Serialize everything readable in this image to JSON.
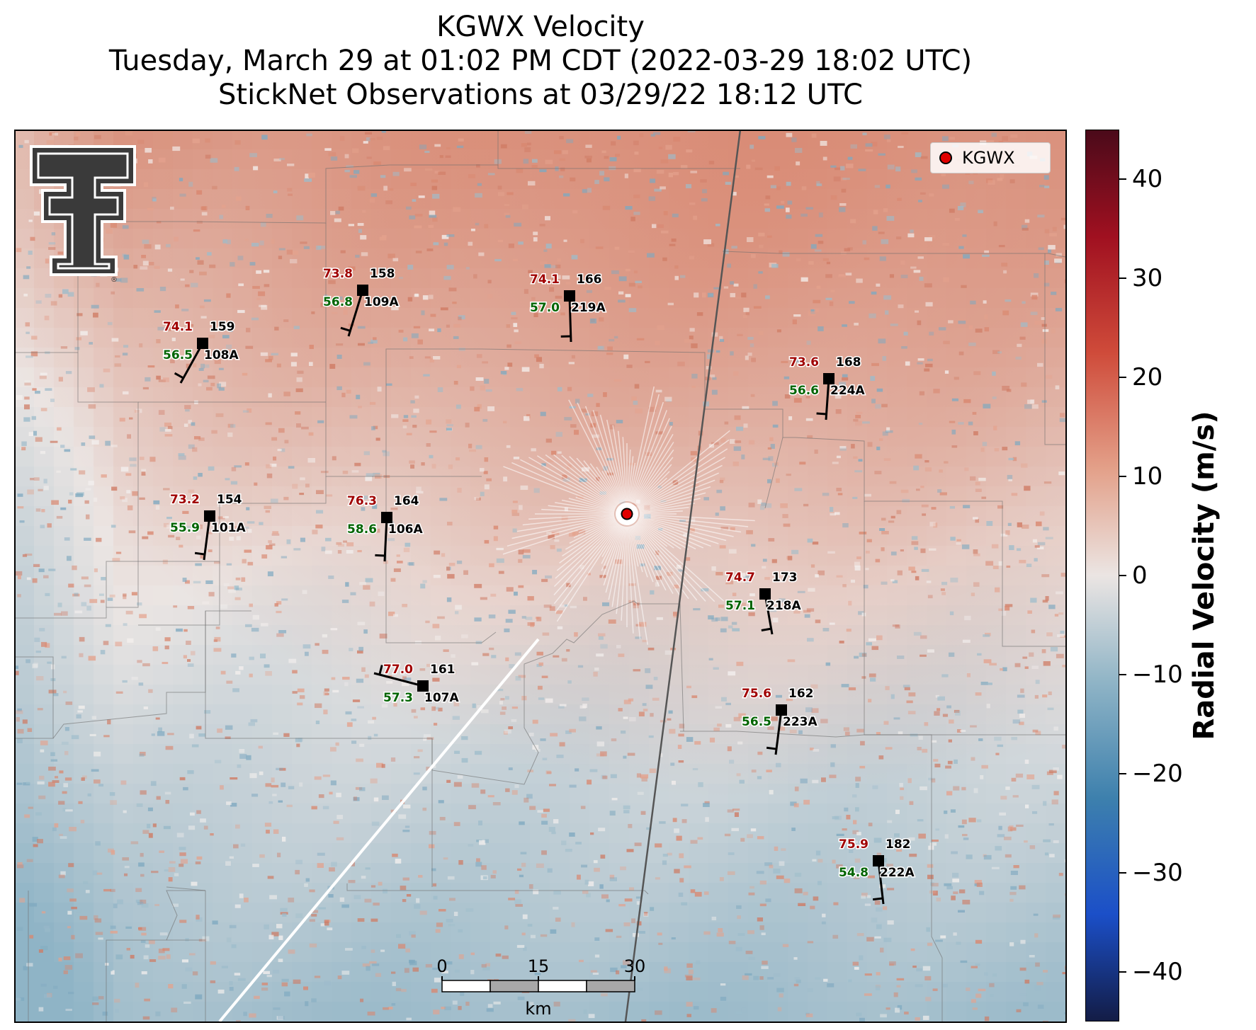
{
  "title": {
    "line1": "KGWX Velocity",
    "line2": "Tuesday, March 29 at 01:02 PM CDT (2022-03-29 18:02 UTC)",
    "line3": "StickNet Observations at 03/29/22 18:12 UTC"
  },
  "legend": {
    "label": "KGWX",
    "marker_color": "#e00000"
  },
  "radar": {
    "name": "KGWX"
  },
  "colorbar": {
    "label": "Radial Velocity (m/s)",
    "min": -45,
    "max": 45,
    "ticks": [
      40,
      30,
      20,
      10,
      0,
      -10,
      -20,
      -30,
      -40
    ],
    "tick_labels": [
      "40",
      "30",
      "20",
      "10",
      "0",
      "−10",
      "−20",
      "−30",
      "−40"
    ],
    "colors": [
      "#4a0a1a",
      "#a01020",
      "#cf4b3a",
      "#e3a089",
      "#ebe5e3",
      "#8fb4c6",
      "#3d80ad",
      "#1b4fc8",
      "#131c45"
    ]
  },
  "scalebar": {
    "labels": [
      "0",
      "15",
      "30"
    ],
    "unit": "km"
  },
  "stations": [
    {
      "id": "108A",
      "temp": "74.1",
      "dew": "56.5",
      "pressure": "159"
    },
    {
      "id": "109A",
      "temp": "73.8",
      "dew": "56.8",
      "pressure": "158"
    },
    {
      "id": "219A",
      "temp": "74.1",
      "dew": "57.0",
      "pressure": "166"
    },
    {
      "id": "224A",
      "temp": "73.6",
      "dew": "56.6",
      "pressure": "168"
    },
    {
      "id": "101A",
      "temp": "73.2",
      "dew": "55.9",
      "pressure": "154"
    },
    {
      "id": "106A",
      "temp": "76.3",
      "dew": "58.6",
      "pressure": "164"
    },
    {
      "id": "218A",
      "temp": "74.7",
      "dew": "57.1",
      "pressure": "173"
    },
    {
      "id": "107A",
      "temp": "77.0",
      "dew": "57.3",
      "pressure": "161"
    },
    {
      "id": "223A",
      "temp": "75.6",
      "dew": "56.5",
      "pressure": "162"
    },
    {
      "id": "222A",
      "temp": "75.9",
      "dew": "54.8",
      "pressure": "182"
    }
  ],
  "colors": {
    "temp": "#a00000",
    "dew": "#006400",
    "station_label": "#000000"
  },
  "logo": {
    "name": "texas-tech-double-t-logo"
  }
}
